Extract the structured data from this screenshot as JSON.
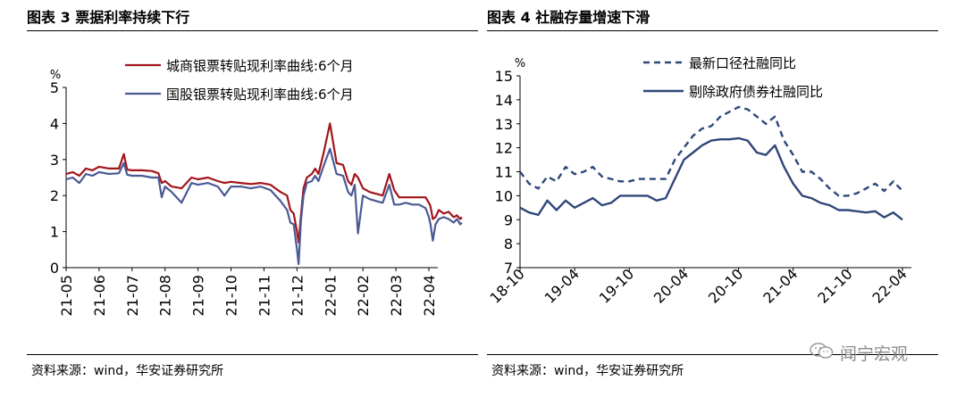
{
  "left": {
    "panel_title": "图表 3  票据利率持续下行",
    "source": "资料来源：wind，华安证券研究所",
    "chart_data": {
      "type": "line",
      "title": "票据利率持续下行",
      "ylabel": "%",
      "ylim": [
        0,
        5
      ],
      "yticks": [
        0,
        1,
        2,
        3,
        4,
        5
      ],
      "xlabels": [
        "21-05",
        "21-06",
        "21-07",
        "21-08",
        "21-09",
        "21-10",
        "21-11",
        "21-12",
        "22-01",
        "22-02",
        "22-03",
        "22-04"
      ],
      "grid": false,
      "legend_position": "top",
      "series": [
        {
          "name": "城商银票转贴现利率曲线:6个月",
          "color": "#a3141b",
          "x": [
            0,
            0.2,
            0.4,
            0.6,
            0.8,
            1.0,
            1.3,
            1.6,
            1.75,
            1.85,
            2.0,
            2.3,
            2.6,
            2.8,
            2.9,
            3.0,
            3.2,
            3.5,
            3.8,
            4.0,
            4.3,
            4.6,
            4.8,
            5.0,
            5.3,
            5.6,
            5.9,
            6.2,
            6.5,
            6.7,
            6.8,
            6.9,
            7.0,
            7.05,
            7.12,
            7.2,
            7.3,
            7.45,
            7.55,
            7.65,
            7.8,
            8.0,
            8.2,
            8.4,
            8.55,
            8.65,
            8.75,
            8.85,
            9.0,
            9.2,
            9.4,
            9.6,
            9.8,
            9.95,
            10.1,
            10.3,
            10.5,
            10.7,
            10.9,
            11.0,
            11.05,
            11.12,
            11.2,
            11.3,
            11.45,
            11.6,
            11.75,
            11.85,
            11.95,
            12.0
          ],
          "y": [
            2.6,
            2.65,
            2.55,
            2.75,
            2.7,
            2.8,
            2.75,
            2.75,
            3.15,
            2.72,
            2.7,
            2.7,
            2.68,
            2.62,
            2.35,
            2.4,
            2.25,
            2.2,
            2.5,
            2.45,
            2.5,
            2.4,
            2.35,
            2.38,
            2.35,
            2.32,
            2.35,
            2.3,
            2.1,
            2.0,
            1.6,
            1.5,
            1.0,
            0.7,
            1.45,
            2.2,
            2.5,
            2.6,
            2.75,
            2.6,
            3.15,
            4.0,
            2.9,
            2.85,
            2.4,
            2.3,
            2.6,
            2.5,
            2.2,
            2.1,
            2.05,
            2.0,
            2.6,
            2.15,
            1.95,
            1.95,
            1.95,
            1.95,
            1.95,
            1.8,
            1.7,
            1.35,
            1.4,
            1.6,
            1.5,
            1.55,
            1.4,
            1.45,
            1.35,
            1.4
          ]
        },
        {
          "name": "国股银票转贴现利率曲线:6个月",
          "color": "#4b5a94",
          "x": [
            0,
            0.2,
            0.4,
            0.6,
            0.8,
            1.0,
            1.3,
            1.6,
            1.75,
            1.85,
            2.0,
            2.3,
            2.6,
            2.8,
            2.9,
            3.0,
            3.2,
            3.5,
            3.8,
            4.0,
            4.3,
            4.6,
            4.8,
            5.0,
            5.3,
            5.6,
            5.9,
            6.2,
            6.5,
            6.7,
            6.8,
            6.9,
            7.0,
            7.05,
            7.12,
            7.2,
            7.3,
            7.45,
            7.55,
            7.65,
            7.8,
            8.0,
            8.2,
            8.4,
            8.55,
            8.65,
            8.75,
            8.85,
            9.0,
            9.2,
            9.4,
            9.6,
            9.8,
            9.95,
            10.1,
            10.3,
            10.5,
            10.7,
            10.9,
            11.0,
            11.05,
            11.12,
            11.2,
            11.3,
            11.45,
            11.6,
            11.75,
            11.85,
            11.95,
            12.0
          ],
          "y": [
            2.45,
            2.5,
            2.35,
            2.6,
            2.55,
            2.65,
            2.6,
            2.62,
            2.9,
            2.58,
            2.55,
            2.55,
            2.5,
            2.5,
            1.95,
            2.25,
            2.1,
            1.8,
            2.35,
            2.3,
            2.35,
            2.25,
            2.0,
            2.25,
            2.25,
            2.2,
            2.25,
            2.15,
            1.85,
            1.6,
            1.25,
            1.2,
            0.5,
            0.1,
            1.3,
            2.0,
            2.35,
            2.4,
            2.55,
            2.4,
            2.8,
            3.3,
            2.6,
            2.55,
            2.1,
            2.0,
            2.3,
            0.95,
            2.0,
            1.9,
            1.85,
            1.8,
            2.3,
            1.75,
            1.75,
            1.8,
            1.75,
            1.75,
            1.65,
            1.4,
            1.2,
            0.75,
            1.2,
            1.35,
            1.4,
            1.35,
            1.25,
            1.35,
            1.2,
            1.25
          ]
        }
      ]
    }
  },
  "right": {
    "panel_title": "图表 4  社融存量增速下滑",
    "source": "资料来源：wind，华安证券研究所",
    "chart_data": {
      "type": "line",
      "title": "社融存量增速下滑",
      "ylabel": "%",
      "ylim": [
        7,
        15
      ],
      "yticks": [
        7,
        8,
        9,
        10,
        11,
        12,
        13,
        14,
        15
      ],
      "xlabels": [
        "18-10",
        "19-04",
        "19-10",
        "20-04",
        "20-10",
        "21-04",
        "21-10",
        "22-04"
      ],
      "grid": false,
      "legend_position": "top",
      "series": [
        {
          "name": "最新口径社融同比",
          "color": "#2f4779",
          "dash": "dashed",
          "x": [
            "2018-10",
            "2018-11",
            "2018-12",
            "2019-01",
            "2019-02",
            "2019-03",
            "2019-04",
            "2019-05",
            "2019-06",
            "2019-07",
            "2019-08",
            "2019-09",
            "2019-10",
            "2019-11",
            "2019-12",
            "2020-01",
            "2020-02",
            "2020-03",
            "2020-04",
            "2020-05",
            "2020-06",
            "2020-07",
            "2020-08",
            "2020-09",
            "2020-10",
            "2020-11",
            "2020-12",
            "2021-01",
            "2021-02",
            "2021-03",
            "2021-04",
            "2021-05",
            "2021-06",
            "2021-07",
            "2021-08",
            "2021-09",
            "2021-10",
            "2021-11",
            "2021-12",
            "2022-01",
            "2022-02",
            "2022-03",
            "2022-04"
          ],
          "y": [
            11.0,
            10.5,
            10.3,
            10.8,
            10.6,
            11.2,
            10.9,
            11.0,
            11.2,
            10.8,
            10.7,
            10.6,
            10.6,
            10.7,
            10.7,
            10.7,
            10.7,
            11.5,
            12.0,
            12.5,
            12.8,
            12.9,
            13.3,
            13.5,
            13.7,
            13.6,
            13.3,
            13.0,
            13.3,
            12.3,
            11.7,
            11.0,
            11.0,
            10.7,
            10.3,
            10.0,
            10.0,
            10.1,
            10.3,
            10.5,
            10.2,
            10.6,
            10.2
          ]
        },
        {
          "name": "剔除政府债券社融同比",
          "color": "#2f4779",
          "dash": "solid",
          "x": [
            "2018-10",
            "2018-11",
            "2018-12",
            "2019-01",
            "2019-02",
            "2019-03",
            "2019-04",
            "2019-05",
            "2019-06",
            "2019-07",
            "2019-08",
            "2019-09",
            "2019-10",
            "2019-11",
            "2019-12",
            "2020-01",
            "2020-02",
            "2020-03",
            "2020-04",
            "2020-05",
            "2020-06",
            "2020-07",
            "2020-08",
            "2020-09",
            "2020-10",
            "2020-11",
            "2020-12",
            "2021-01",
            "2021-02",
            "2021-03",
            "2021-04",
            "2021-05",
            "2021-06",
            "2021-07",
            "2021-08",
            "2021-09",
            "2021-10",
            "2021-11",
            "2021-12",
            "2022-01",
            "2022-02",
            "2022-03",
            "2022-04"
          ],
          "y": [
            9.5,
            9.3,
            9.2,
            9.8,
            9.4,
            9.8,
            9.5,
            9.7,
            9.9,
            9.6,
            9.7,
            10.0,
            10.0,
            10.0,
            10.0,
            9.8,
            9.9,
            10.7,
            11.5,
            11.8,
            12.1,
            12.3,
            12.35,
            12.35,
            12.4,
            12.3,
            11.8,
            11.7,
            12.1,
            11.2,
            10.5,
            10.0,
            9.9,
            9.7,
            9.6,
            9.4,
            9.4,
            9.35,
            9.3,
            9.35,
            9.1,
            9.3,
            9.0
          ]
        }
      ]
    }
  },
  "watermark": "闻宁宏观"
}
